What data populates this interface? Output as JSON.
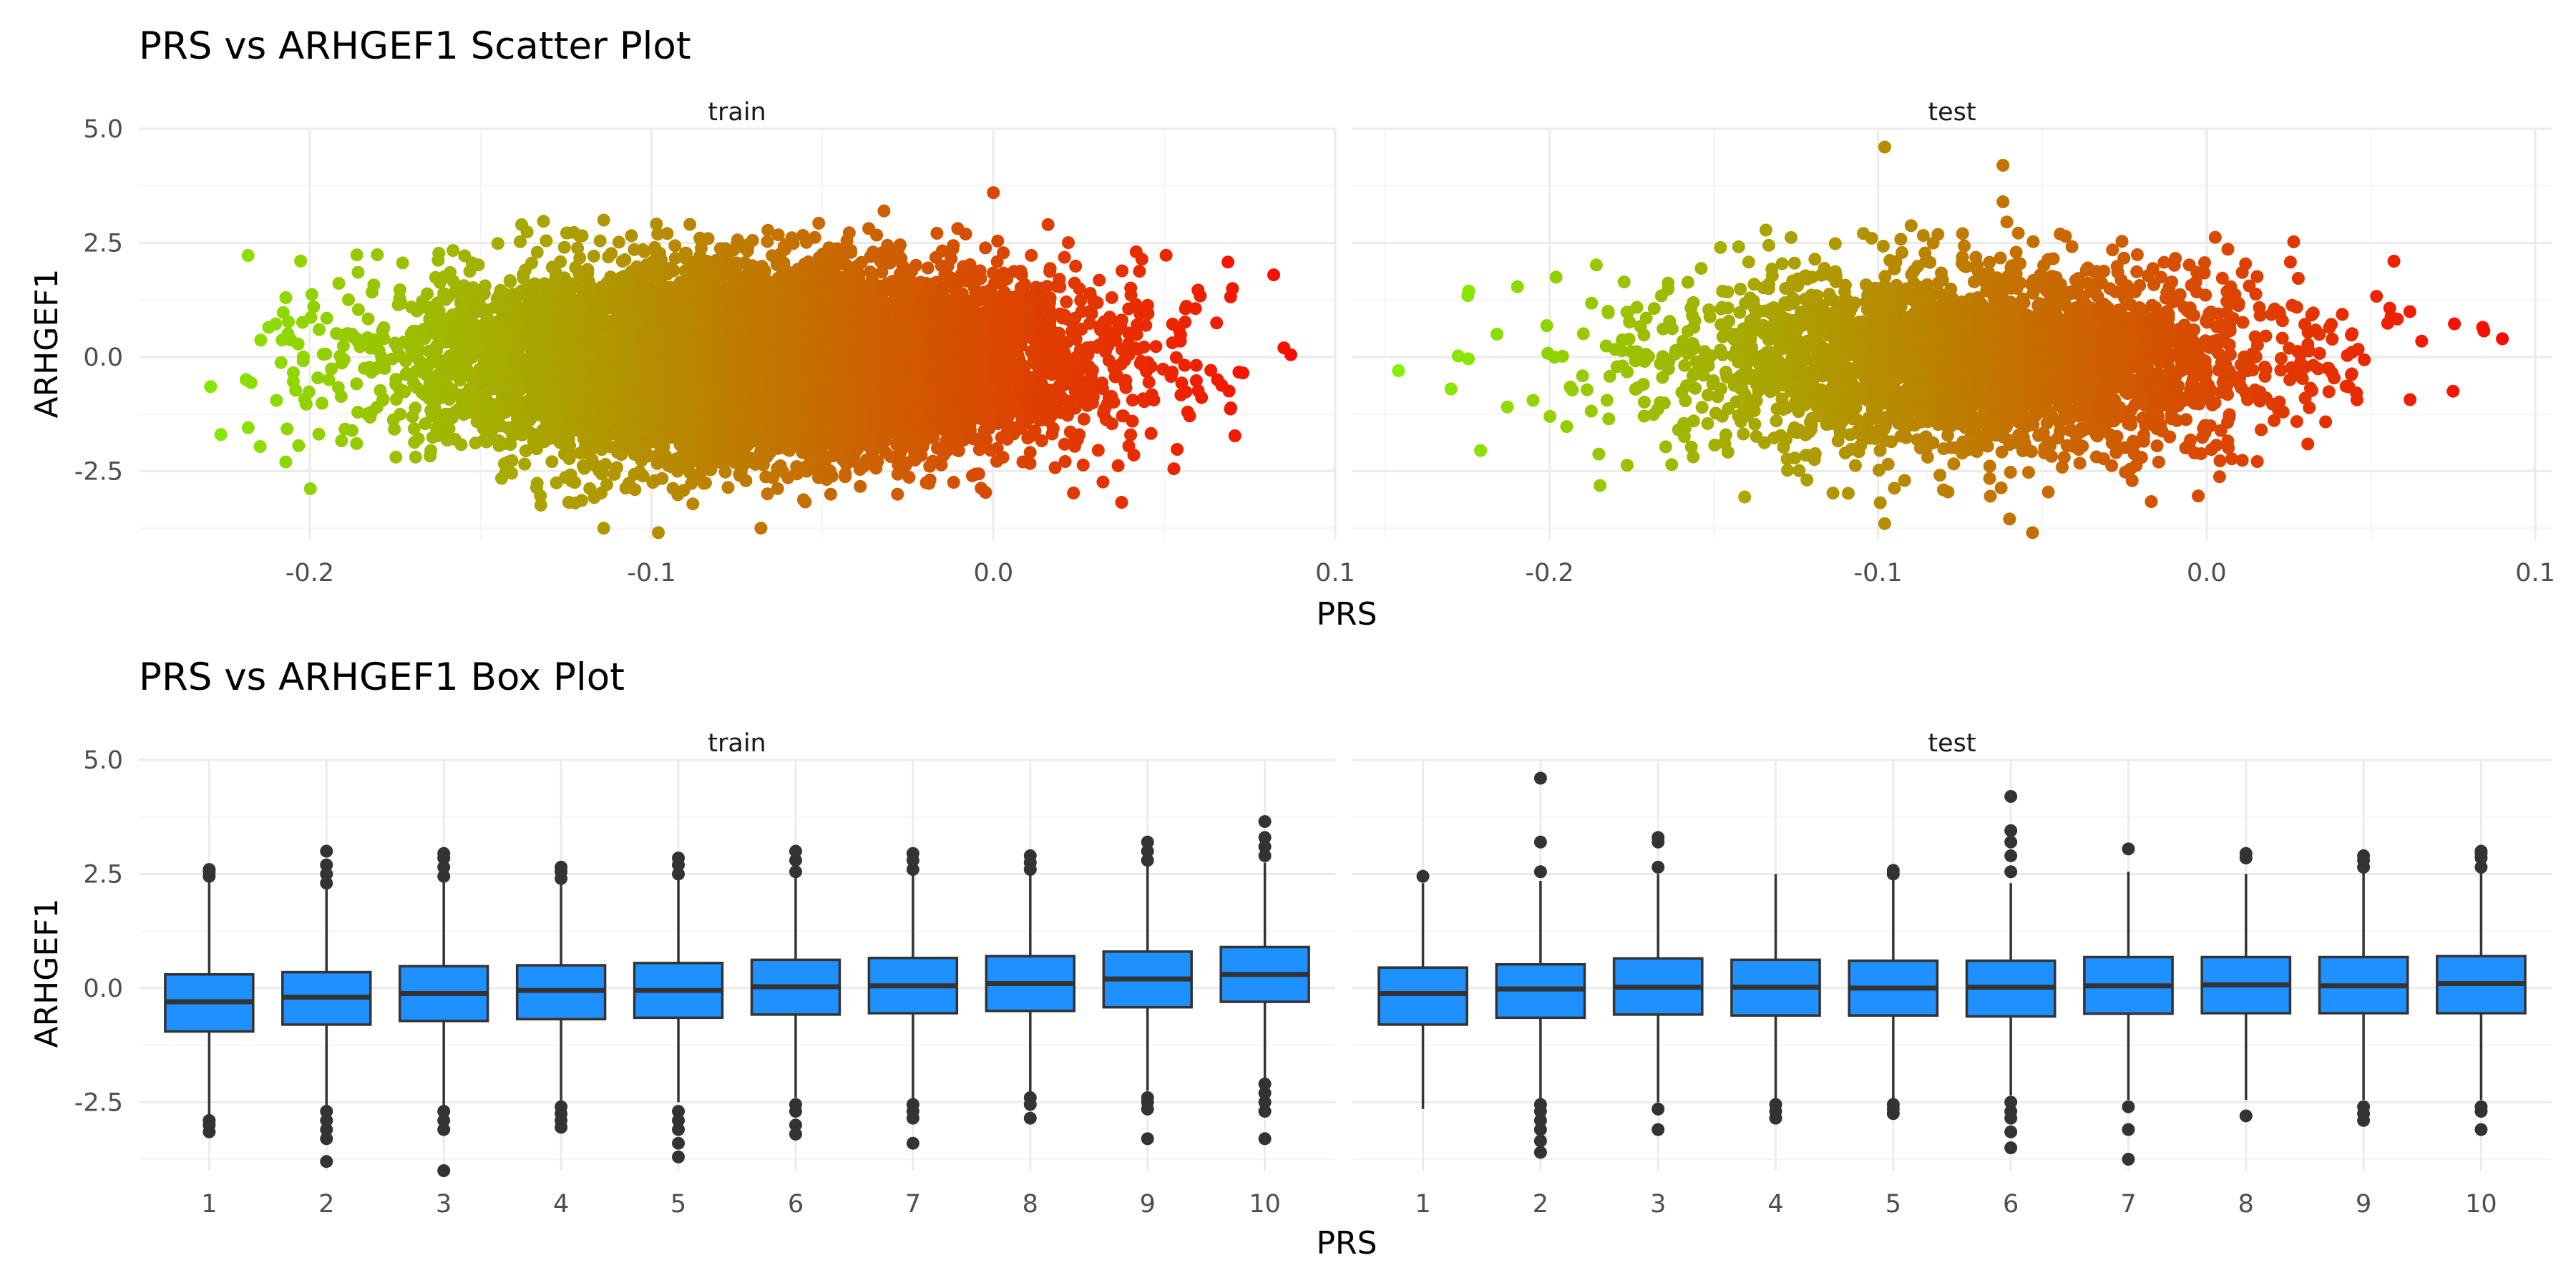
{
  "chart_data": [
    {
      "type": "scatter",
      "title": "PRS vs ARHGEF1 Scatter Plot",
      "xlabel": "PRS",
      "ylabel": "ARHGEF1",
      "grid": true,
      "legend": "none",
      "color_scale": {
        "low": "#7cfc00",
        "high": "#ff0000",
        "mapped_to": "PRS"
      },
      "facets": [
        {
          "label": "train",
          "xlim": [
            -0.25,
            0.1
          ],
          "ylim": [
            -4.0,
            5.0
          ],
          "x_ticks": [
            "-0.2",
            "-0.1",
            "0.0",
            "0.1"
          ],
          "x_tick_values": [
            -0.2,
            -0.1,
            0.0,
            0.1
          ],
          "y_ticks": [
            "-2.5",
            "0.0",
            "2.5",
            "5.0"
          ],
          "y_tick_values": [
            -2.5,
            0.0,
            2.5,
            5.0
          ],
          "x_center": -0.07,
          "x_sd": 0.045,
          "y_center": -0.1,
          "y_sd": 1.0,
          "n_points": 9000,
          "points": [
            {
              "x": -0.229,
              "y": -0.65
            },
            {
              "x": -0.226,
              "y": -1.7
            },
            {
              "x": -0.218,
              "y": -1.55
            },
            {
              "x": -0.212,
              "y": 0.65
            },
            {
              "x": -0.207,
              "y": 1.3
            },
            {
              "x": -0.207,
              "y": -2.3
            },
            {
              "x": -0.195,
              "y": 0.85
            },
            {
              "x": 0.082,
              "y": 1.8
            },
            {
              "x": 0.085,
              "y": 0.2
            },
            {
              "x": 0.087,
              "y": 0.05
            },
            {
              "x": 0.073,
              "y": -0.35
            },
            {
              "x": -0.098,
              "y": -3.85
            },
            {
              "x": -0.114,
              "y": -3.75
            },
            {
              "x": -0.068,
              "y": -3.75
            },
            {
              "x": 0.0,
              "y": 3.6
            },
            {
              "x": 0.016,
              "y": 2.9
            },
            {
              "x": -0.032,
              "y": 3.2
            },
            {
              "x": -0.114,
              "y": 3.0
            }
          ]
        },
        {
          "label": "test",
          "xlim": [
            -0.26,
            0.105
          ],
          "ylim": [
            -4.0,
            5.0
          ],
          "x_ticks": [
            "-0.2",
            "-0.1",
            "0.0",
            "0.1"
          ],
          "x_tick_values": [
            -0.2,
            -0.1,
            0.0,
            0.1
          ],
          "y_ticks": [
            "-2.5",
            "0.0",
            "2.5",
            "5.0"
          ],
          "y_tick_values": [
            -2.5,
            0.0,
            2.5,
            5.0
          ],
          "x_center": -0.07,
          "x_sd": 0.045,
          "y_center": -0.05,
          "y_sd": 1.0,
          "n_points": 3000,
          "points": [
            {
              "x": -0.246,
              "y": -0.3
            },
            {
              "x": -0.23,
              "y": -0.7
            },
            {
              "x": -0.221,
              "y": -2.05
            },
            {
              "x": -0.216,
              "y": 0.5
            },
            {
              "x": -0.205,
              "y": -0.95
            },
            {
              "x": -0.198,
              "y": 1.75
            },
            {
              "x": 0.09,
              "y": 0.4
            },
            {
              "x": 0.084,
              "y": 0.65
            },
            {
              "x": 0.075,
              "y": -0.75
            },
            {
              "x": 0.057,
              "y": 2.1
            },
            {
              "x": -0.098,
              "y": 4.6
            },
            {
              "x": -0.062,
              "y": 4.2
            },
            {
              "x": -0.062,
              "y": 3.4
            },
            {
              "x": -0.098,
              "y": -3.65
            },
            {
              "x": -0.06,
              "y": -3.55
            },
            {
              "x": -0.053,
              "y": -3.85
            }
          ]
        }
      ]
    },
    {
      "type": "box",
      "title": "PRS vs ARHGEF1 Box Plot",
      "xlabel": "PRS",
      "ylabel": "ARHGEF1",
      "grid": true,
      "legend": "none",
      "fill": "#1e90ff",
      "categories": [
        "1",
        "2",
        "3",
        "4",
        "5",
        "6",
        "7",
        "8",
        "9",
        "10"
      ],
      "facets": [
        {
          "label": "train",
          "ylim": [
            -4.0,
            5.0
          ],
          "y_ticks": [
            "-2.5",
            "0.0",
            "2.5",
            "5.0"
          ],
          "y_tick_values": [
            -2.5,
            0.0,
            2.5,
            5.0
          ],
          "boxes": [
            {
              "q1": -0.95,
              "median": -0.3,
              "q3": 0.3,
              "lower": -2.8,
              "upper": 2.4,
              "outliers": [
                -2.9,
                -3.0,
                -3.15,
                2.45,
                2.55,
                2.6
              ]
            },
            {
              "q1": -0.8,
              "median": -0.2,
              "q3": 0.35,
              "lower": -2.6,
              "upper": 2.2,
              "outliers": [
                -2.7,
                -2.9,
                -3.1,
                -3.3,
                -3.8,
                2.3,
                2.5,
                2.7,
                3.0
              ]
            },
            {
              "q1": -0.72,
              "median": -0.12,
              "q3": 0.48,
              "lower": -2.6,
              "upper": 2.35,
              "outliers": [
                -2.7,
                -2.9,
                -3.1,
                -4.0,
                2.45,
                2.65,
                2.85,
                2.95
              ]
            },
            {
              "q1": -0.68,
              "median": -0.05,
              "q3": 0.5,
              "lower": -2.5,
              "upper": 2.3,
              "outliers": [
                -2.6,
                -2.75,
                -2.9,
                -3.05,
                2.4,
                2.55,
                2.65
              ]
            },
            {
              "q1": -0.65,
              "median": -0.05,
              "q3": 0.55,
              "lower": -2.5,
              "upper": 2.4,
              "outliers": [
                -2.7,
                -2.9,
                -3.1,
                -3.4,
                -3.7,
                2.5,
                2.7,
                2.85
              ]
            },
            {
              "q1": -0.58,
              "median": 0.03,
              "q3": 0.62,
              "lower": -2.4,
              "upper": 2.45,
              "outliers": [
                -2.55,
                -2.7,
                -3.0,
                -3.2,
                2.55,
                2.8,
                3.0
              ]
            },
            {
              "q1": -0.55,
              "median": 0.05,
              "q3": 0.66,
              "lower": -2.45,
              "upper": 2.5,
              "outliers": [
                -2.55,
                -2.7,
                -2.85,
                -3.4,
                2.6,
                2.8,
                2.95
              ]
            },
            {
              "q1": -0.5,
              "median": 0.1,
              "q3": 0.7,
              "lower": -2.3,
              "upper": 2.5,
              "outliers": [
                -2.4,
                -2.55,
                -2.85,
                2.6,
                2.75,
                2.9
              ]
            },
            {
              "q1": -0.42,
              "median": 0.2,
              "q3": 0.8,
              "lower": -2.25,
              "upper": 2.7,
              "outliers": [
                -2.4,
                -2.5,
                -2.65,
                -3.3,
                2.8,
                3.0,
                3.2
              ]
            },
            {
              "q1": -0.3,
              "median": 0.3,
              "q3": 0.9,
              "lower": -2.0,
              "upper": 2.75,
              "outliers": [
                -2.1,
                -2.3,
                -2.5,
                -2.7,
                -3.3,
                2.9,
                3.1,
                3.3,
                3.65
              ]
            }
          ]
        },
        {
          "label": "test",
          "ylim": [
            -4.0,
            5.0
          ],
          "y_ticks": [
            "-2.5",
            "0.0",
            "2.5",
            "5.0"
          ],
          "y_tick_values": [
            -2.5,
            0.0,
            2.5,
            5.0
          ],
          "boxes": [
            {
              "q1": -0.8,
              "median": -0.12,
              "q3": 0.45,
              "lower": -2.65,
              "upper": 2.3,
              "outliers": [
                2.45
              ]
            },
            {
              "q1": -0.65,
              "median": -0.02,
              "q3": 0.52,
              "lower": -2.45,
              "upper": 2.35,
              "outliers": [
                -2.55,
                -2.7,
                -2.9,
                -3.1,
                -3.35,
                -3.6,
                2.55,
                3.2,
                4.6
              ]
            },
            {
              "q1": -0.58,
              "median": 0.02,
              "q3": 0.65,
              "lower": -2.5,
              "upper": 2.5,
              "outliers": [
                -2.65,
                -3.1,
                2.65,
                3.2,
                3.3
              ]
            },
            {
              "q1": -0.6,
              "median": 0.02,
              "q3": 0.62,
              "lower": -2.45,
              "upper": 2.5,
              "outliers": [
                -2.55,
                -2.7,
                -2.85
              ]
            },
            {
              "q1": -0.6,
              "median": 0.0,
              "q3": 0.6,
              "lower": -2.45,
              "upper": 2.45,
              "outliers": [
                -2.55,
                -2.65,
                -2.75,
                2.5,
                2.58
              ]
            },
            {
              "q1": -0.62,
              "median": 0.02,
              "q3": 0.6,
              "lower": -2.35,
              "upper": 2.3,
              "outliers": [
                -2.5,
                -2.7,
                -2.85,
                -3.15,
                -3.5,
                2.55,
                2.9,
                3.2,
                3.45,
                4.2
              ]
            },
            {
              "q1": -0.56,
              "median": 0.05,
              "q3": 0.68,
              "lower": -2.45,
              "upper": 2.55,
              "outliers": [
                -2.6,
                -3.1,
                -3.75,
                3.05
              ]
            },
            {
              "q1": -0.55,
              "median": 0.07,
              "q3": 0.68,
              "lower": -2.45,
              "upper": 2.5,
              "outliers": [
                -2.8,
                2.85,
                2.95
              ]
            },
            {
              "q1": -0.55,
              "median": 0.05,
              "q3": 0.68,
              "lower": -2.45,
              "upper": 2.55,
              "outliers": [
                -2.6,
                -2.75,
                -2.9,
                2.65,
                2.8,
                2.9
              ]
            },
            {
              "q1": -0.55,
              "median": 0.1,
              "q3": 0.7,
              "lower": -2.45,
              "upper": 2.55,
              "outliers": [
                -2.6,
                -2.7,
                -3.1,
                2.65,
                2.85,
                2.95,
                3.0
              ]
            }
          ]
        }
      ]
    }
  ]
}
